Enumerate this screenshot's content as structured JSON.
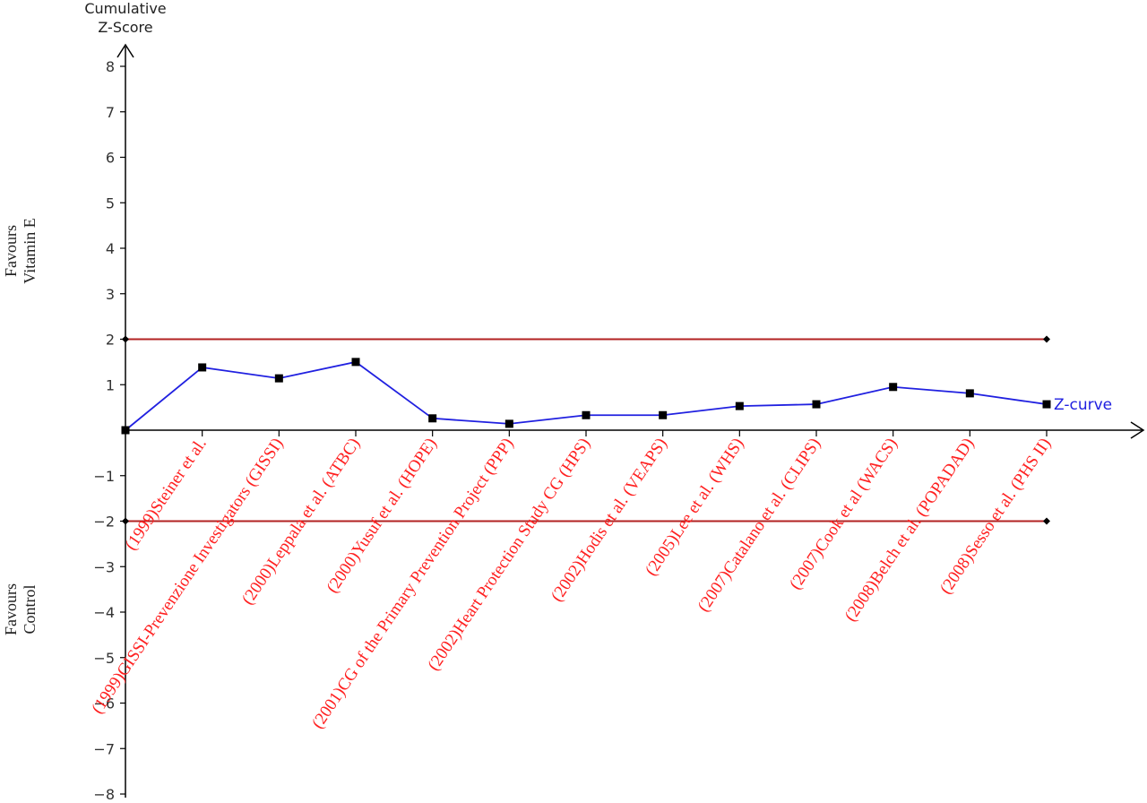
{
  "chart_data": {
    "type": "line",
    "ylabel": [
      "Cumulative",
      "Z-Score"
    ],
    "annotations": [
      {
        "lines": [
          "Favours",
          "Vitamin E"
        ]
      },
      {
        "lines": [
          "Favours",
          "Control"
        ]
      }
    ],
    "categories": [
      null,
      "(1999)Steiner et al.",
      "(1999)GISSI-Prevenzione Investigators (GISSI)",
      "(2000)Leppala et al. (ATBC)",
      "(2000)Yusuf et al. (HOPE)",
      "(2001)CG of the Primary Prevention Project (PPP)",
      "(2002)Heart Protection Study CG (HPS)",
      "(2002)Hodis et al. (VEAPS)",
      "(2005)Lee et al. (WHS)",
      "(2007)Catalano et al. (CLIPS)",
      "(2007)Cook et al (WACS)",
      "(2008)Belch et al. (POPADAD)",
      "(2008)Sesso et al. (PHS II)"
    ],
    "series": [
      {
        "name": "Z-curve",
        "color": "#2020e0",
        "values": [
          0,
          1.38,
          1.14,
          1.5,
          0.26,
          0.14,
          0.33,
          0.33,
          0.53,
          0.57,
          0.95,
          0.81,
          0.57
        ]
      }
    ],
    "reference_lines": [
      {
        "value": 2,
        "color": "#b22222"
      },
      {
        "value": -2,
        "color": "#b22222"
      }
    ],
    "ylim": [
      -8,
      8
    ],
    "yticks": [
      {
        "value": -8,
        "label": "−8"
      },
      {
        "value": -7,
        "label": "−7"
      },
      {
        "value": -6,
        "label": "−6"
      },
      {
        "value": -5,
        "label": "−5"
      },
      {
        "value": -4,
        "label": "−4"
      },
      {
        "value": -3,
        "label": "−3"
      },
      {
        "value": -2,
        "label": "−2"
      },
      {
        "value": -1,
        "label": "−1"
      },
      1,
      2,
      3,
      4,
      5,
      6,
      7,
      8
    ],
    "category_label_color": "#ff2020"
  }
}
